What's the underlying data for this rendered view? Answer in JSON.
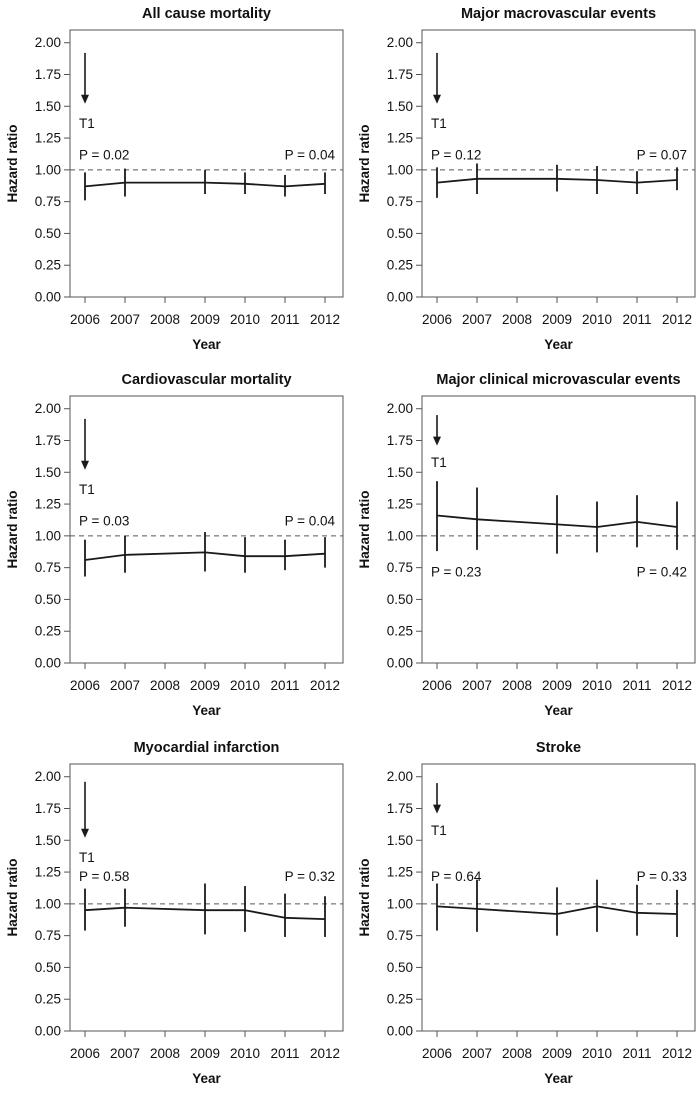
{
  "chart_data": [
    {
      "type": "line",
      "title": "All cause mortality",
      "xlabel": "Year",
      "ylabel": "Hazard ratio",
      "ylim": [
        0,
        2.1
      ],
      "categories": [
        "2006",
        "2007",
        "2008",
        "2009",
        "2010",
        "2011",
        "2012"
      ],
      "y_ticks": [
        "0.00",
        "0.25",
        "0.50",
        "0.75",
        "1.00",
        "1.25",
        "1.50",
        "1.75",
        "2.00"
      ],
      "reference_line": 1.0,
      "marker_label": "T1",
      "marker_from": 1.92,
      "marker_to": 1.52,
      "marker_label_y": 1.37,
      "p_left": "P = 0.02",
      "p_right": "P = 0.04",
      "p_y": 1.12,
      "points": [
        {
          "x": 2006,
          "y": 0.87,
          "lo": 0.76,
          "hi": 0.98
        },
        {
          "x": 2007,
          "y": 0.9,
          "lo": 0.79,
          "hi": 1.01
        },
        {
          "x": 2009,
          "y": 0.9,
          "lo": 0.81,
          "hi": 1.0
        },
        {
          "x": 2010,
          "y": 0.89,
          "lo": 0.81,
          "hi": 0.98
        },
        {
          "x": 2011,
          "y": 0.87,
          "lo": 0.79,
          "hi": 0.96
        },
        {
          "x": 2012,
          "y": 0.89,
          "lo": 0.81,
          "hi": 0.98
        }
      ]
    },
    {
      "type": "line",
      "title": "Major macrovascular events",
      "xlabel": "Year",
      "ylabel": "Hazard ratio",
      "ylim": [
        0,
        2.1
      ],
      "categories": [
        "2006",
        "2007",
        "2008",
        "2009",
        "2010",
        "2011",
        "2012"
      ],
      "y_ticks": [
        "0.00",
        "0.25",
        "0.50",
        "0.75",
        "1.00",
        "1.25",
        "1.50",
        "1.75",
        "2.00"
      ],
      "reference_line": 1.0,
      "marker_label": "T1",
      "marker_from": 1.92,
      "marker_to": 1.52,
      "marker_label_y": 1.37,
      "p_left": "P = 0.12",
      "p_right": "P = 0.07",
      "p_y": 1.12,
      "points": [
        {
          "x": 2006,
          "y": 0.9,
          "lo": 0.78,
          "hi": 1.02
        },
        {
          "x": 2007,
          "y": 0.93,
          "lo": 0.81,
          "hi": 1.05
        },
        {
          "x": 2009,
          "y": 0.93,
          "lo": 0.83,
          "hi": 1.04
        },
        {
          "x": 2010,
          "y": 0.92,
          "lo": 0.81,
          "hi": 1.03
        },
        {
          "x": 2011,
          "y": 0.9,
          "lo": 0.81,
          "hi": 0.99
        },
        {
          "x": 2012,
          "y": 0.92,
          "lo": 0.84,
          "hi": 1.02
        }
      ]
    },
    {
      "type": "line",
      "title": "Cardiovascular mortality",
      "xlabel": "Year",
      "ylabel": "Hazard ratio",
      "ylim": [
        0,
        2.1
      ],
      "categories": [
        "2006",
        "2007",
        "2008",
        "2009",
        "2010",
        "2011",
        "2012"
      ],
      "y_ticks": [
        "0.00",
        "0.25",
        "0.50",
        "0.75",
        "1.00",
        "1.25",
        "1.50",
        "1.75",
        "2.00"
      ],
      "reference_line": 1.0,
      "marker_label": "T1",
      "marker_from": 1.92,
      "marker_to": 1.52,
      "marker_label_y": 1.37,
      "p_left": "P = 0.03",
      "p_right": "P = 0.04",
      "p_y": 1.12,
      "points": [
        {
          "x": 2006,
          "y": 0.81,
          "lo": 0.68,
          "hi": 0.97
        },
        {
          "x": 2007,
          "y": 0.85,
          "lo": 0.71,
          "hi": 1.0
        },
        {
          "x": 2009,
          "y": 0.87,
          "lo": 0.72,
          "hi": 1.03
        },
        {
          "x": 2010,
          "y": 0.84,
          "lo": 0.71,
          "hi": 0.99
        },
        {
          "x": 2011,
          "y": 0.84,
          "lo": 0.73,
          "hi": 0.97
        },
        {
          "x": 2012,
          "y": 0.86,
          "lo": 0.75,
          "hi": 0.99
        }
      ]
    },
    {
      "type": "line",
      "title": "Major clinical microvascular events",
      "xlabel": "Year",
      "ylabel": "Hazard ratio",
      "ylim": [
        0,
        2.1
      ],
      "categories": [
        "2006",
        "2007",
        "2008",
        "2009",
        "2010",
        "2011",
        "2012"
      ],
      "y_ticks": [
        "0.00",
        "0.25",
        "0.50",
        "0.75",
        "1.00",
        "1.25",
        "1.50",
        "1.75",
        "2.00"
      ],
      "reference_line": 1.0,
      "marker_label": "T1",
      "marker_from": 1.95,
      "marker_to": 1.71,
      "marker_label_y": 1.58,
      "p_left": "P = 0.23",
      "p_right": "P = 0.42",
      "p_y": 0.72,
      "points": [
        {
          "x": 2006,
          "y": 1.16,
          "lo": 0.88,
          "hi": 1.43
        },
        {
          "x": 2007,
          "y": 1.13,
          "lo": 0.89,
          "hi": 1.38
        },
        {
          "x": 2009,
          "y": 1.09,
          "lo": 0.86,
          "hi": 1.32
        },
        {
          "x": 2010,
          "y": 1.07,
          "lo": 0.87,
          "hi": 1.27
        },
        {
          "x": 2011,
          "y": 1.11,
          "lo": 0.91,
          "hi": 1.32
        },
        {
          "x": 2012,
          "y": 1.07,
          "lo": 0.89,
          "hi": 1.27
        }
      ]
    },
    {
      "type": "line",
      "title": "Myocardial infarction",
      "xlabel": "Year",
      "ylabel": "Hazard ratio",
      "ylim": [
        0,
        2.1
      ],
      "categories": [
        "2006",
        "2007",
        "2008",
        "2009",
        "2010",
        "2011",
        "2012"
      ],
      "y_ticks": [
        "0.00",
        "0.25",
        "0.50",
        "0.75",
        "1.00",
        "1.25",
        "1.50",
        "1.75",
        "2.00"
      ],
      "reference_line": 1.0,
      "marker_label": "T1",
      "marker_from": 1.96,
      "marker_to": 1.52,
      "marker_label_y": 1.37,
      "p_left": "P = 0.58",
      "p_right": "P = 0.32",
      "p_y": 1.22,
      "points": [
        {
          "x": 2006,
          "y": 0.95,
          "lo": 0.79,
          "hi": 1.12
        },
        {
          "x": 2007,
          "y": 0.97,
          "lo": 0.82,
          "hi": 1.12
        },
        {
          "x": 2009,
          "y": 0.95,
          "lo": 0.76,
          "hi": 1.16
        },
        {
          "x": 2010,
          "y": 0.95,
          "lo": 0.78,
          "hi": 1.14
        },
        {
          "x": 2011,
          "y": 0.89,
          "lo": 0.74,
          "hi": 1.08
        },
        {
          "x": 2012,
          "y": 0.88,
          "lo": 0.74,
          "hi": 1.06
        }
      ]
    },
    {
      "type": "line",
      "title": "Stroke",
      "xlabel": "Year",
      "ylabel": "Hazard ratio",
      "ylim": [
        0,
        2.1
      ],
      "categories": [
        "2006",
        "2007",
        "2008",
        "2009",
        "2010",
        "2011",
        "2012"
      ],
      "y_ticks": [
        "0.00",
        "0.25",
        "0.50",
        "0.75",
        "1.00",
        "1.25",
        "1.50",
        "1.75",
        "2.00"
      ],
      "reference_line": 1.0,
      "marker_label": "T1",
      "marker_from": 1.95,
      "marker_to": 1.71,
      "marker_label_y": 1.58,
      "p_left": "P = 0.64",
      "p_right": "P = 0.33",
      "p_y": 1.22,
      "points": [
        {
          "x": 2006,
          "y": 0.98,
          "lo": 0.79,
          "hi": 1.16
        },
        {
          "x": 2007,
          "y": 0.96,
          "lo": 0.78,
          "hi": 1.19
        },
        {
          "x": 2009,
          "y": 0.92,
          "lo": 0.75,
          "hi": 1.13
        },
        {
          "x": 2010,
          "y": 0.98,
          "lo": 0.78,
          "hi": 1.19
        },
        {
          "x": 2011,
          "y": 0.93,
          "lo": 0.75,
          "hi": 1.15
        },
        {
          "x": 2012,
          "y": 0.92,
          "lo": 0.74,
          "hi": 1.11
        }
      ]
    }
  ]
}
